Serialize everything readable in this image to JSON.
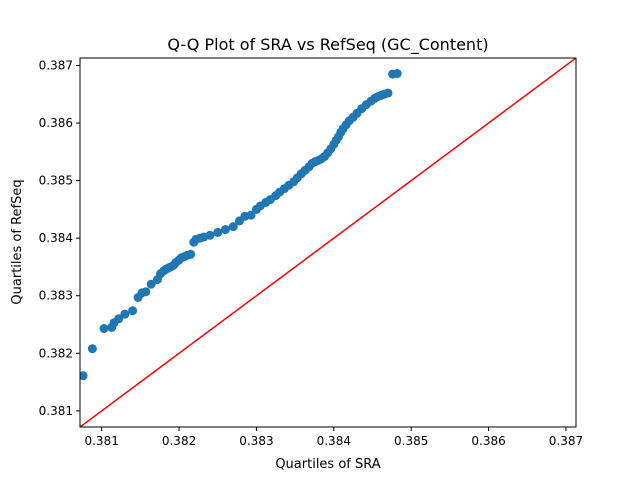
{
  "chart_data": {
    "type": "scatter",
    "title": "Q-Q Plot of SRA vs RefSeq (GC_Content)",
    "xlabel": "Quartiles of SRA",
    "ylabel": "Quartiles of RefSeq",
    "xlim": [
      0.38072,
      0.38713
    ],
    "ylim": [
      0.38072,
      0.38713
    ],
    "xticks": [
      "0.381",
      "0.382",
      "0.383",
      "0.384",
      "0.385",
      "0.386",
      "0.387"
    ],
    "yticks": [
      "0.381",
      "0.382",
      "0.383",
      "0.384",
      "0.385",
      "0.386",
      "0.387"
    ],
    "grid": false,
    "point_color": "#1f77b4",
    "reference_line": {
      "type": "y=x",
      "color": "#ff0000"
    },
    "x": [
      0.38076,
      0.38088,
      0.38103,
      0.38113,
      0.38116,
      0.38122,
      0.3813,
      0.3814,
      0.38147,
      0.38152,
      0.38157,
      0.38164,
      0.38172,
      0.38176,
      0.3818,
      0.38183,
      0.38186,
      0.38189,
      0.38193,
      0.38196,
      0.382,
      0.38203,
      0.38207,
      0.3821,
      0.38215,
      0.38219,
      0.38222,
      0.38227,
      0.38232,
      0.3824,
      0.3825,
      0.3826,
      0.3827,
      0.38278,
      0.38285,
      0.38293,
      0.383,
      0.38305,
      0.38312,
      0.38318,
      0.38325,
      0.3833,
      0.38336,
      0.38342,
      0.38348,
      0.38353,
      0.38358,
      0.38363,
      0.38368,
      0.38372,
      0.38376,
      0.3838,
      0.38384,
      0.38388,
      0.38392,
      0.38396,
      0.384,
      0.38403,
      0.38406,
      0.38409,
      0.38412,
      0.38416,
      0.3842,
      0.38425,
      0.3843,
      0.38436,
      0.38442,
      0.38448,
      0.38453,
      0.38457,
      0.38461,
      0.38465,
      0.3847,
      0.38476,
      0.38482
    ],
    "y": [
      0.38161,
      0.38208,
      0.38243,
      0.38245,
      0.38253,
      0.3826,
      0.38268,
      0.38274,
      0.38297,
      0.38305,
      0.38307,
      0.3832,
      0.38328,
      0.38338,
      0.38343,
      0.38346,
      0.38348,
      0.3835,
      0.38353,
      0.38358,
      0.38362,
      0.38366,
      0.38368,
      0.3837,
      0.38372,
      0.38393,
      0.38398,
      0.384,
      0.38402,
      0.38405,
      0.3841,
      0.38415,
      0.3842,
      0.3843,
      0.38438,
      0.3844,
      0.3845,
      0.38456,
      0.38462,
      0.38467,
      0.38474,
      0.3848,
      0.38486,
      0.38492,
      0.38498,
      0.38505,
      0.38512,
      0.38518,
      0.38524,
      0.3853,
      0.38533,
      0.38535,
      0.38538,
      0.38542,
      0.38548,
      0.38555,
      0.38563,
      0.3857,
      0.38576,
      0.38584,
      0.3859,
      0.38597,
      0.38604,
      0.3861,
      0.38617,
      0.38625,
      0.38632,
      0.38638,
      0.38643,
      0.38646,
      0.38648,
      0.3865,
      0.38652,
      0.38685,
      0.38686
    ]
  }
}
